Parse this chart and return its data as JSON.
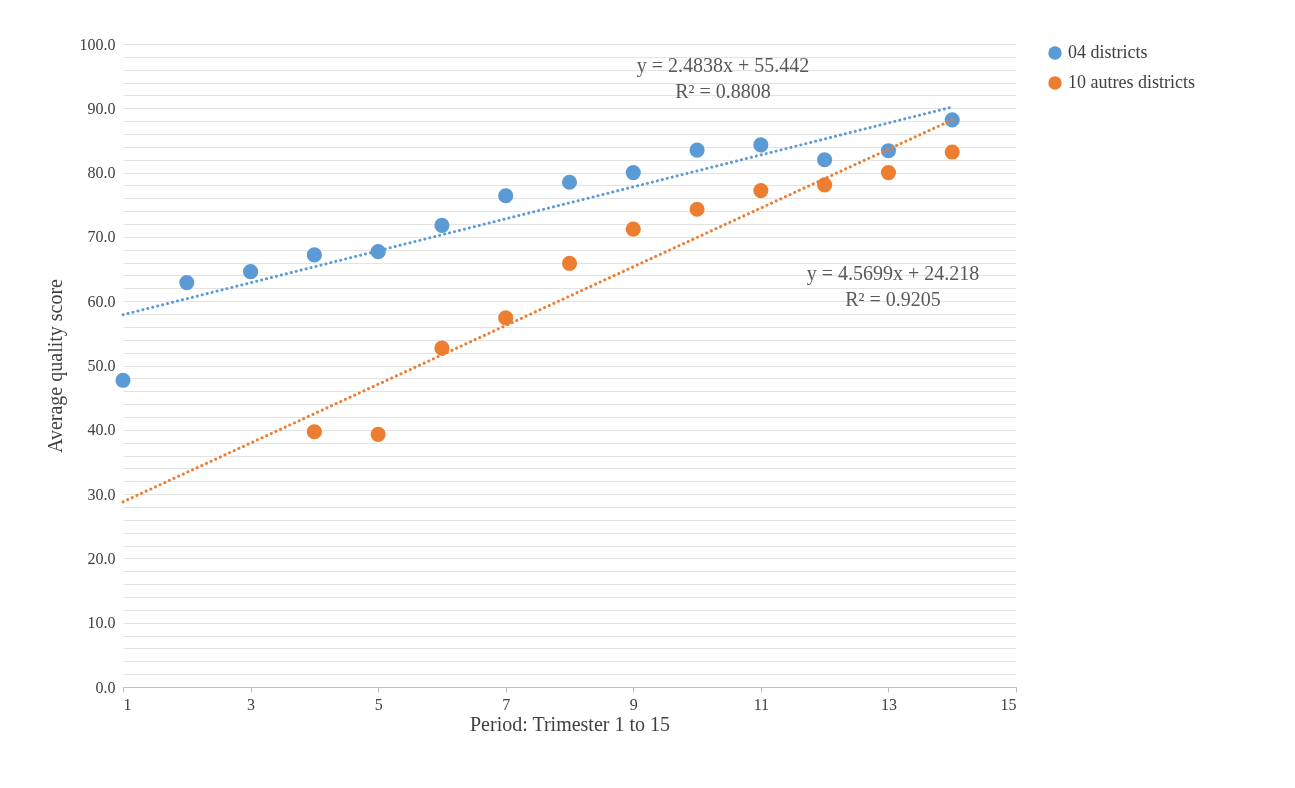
{
  "chart_data": {
    "type": "scatter",
    "xlabel": "Period: Trimester 1 to 15",
    "ylabel": "Average quality score",
    "xlim": [
      1,
      15
    ],
    "xticks": [
      1,
      3,
      5,
      7,
      9,
      11,
      13,
      15
    ],
    "ylim": [
      0,
      100
    ],
    "yticks": [
      {
        "value": 0,
        "label": "0.0"
      },
      {
        "value": 2,
        "label": null
      },
      {
        "value": 4,
        "label": null
      },
      {
        "value": 6,
        "label": null
      },
      {
        "value": 8,
        "label": null
      },
      {
        "value": 10,
        "label": "10.0"
      },
      {
        "value": 12,
        "label": null
      },
      {
        "value": 14,
        "label": null
      },
      {
        "value": 16,
        "label": null
      },
      {
        "value": 18,
        "label": null
      },
      {
        "value": 20,
        "label": "20.0"
      },
      {
        "value": 22,
        "label": null
      },
      {
        "value": 24,
        "label": null
      },
      {
        "value": 26,
        "label": null
      },
      {
        "value": 28,
        "label": null
      },
      {
        "value": 30,
        "label": "30.0"
      },
      {
        "value": 32,
        "label": null
      },
      {
        "value": 34,
        "label": null
      },
      {
        "value": 36,
        "label": null
      },
      {
        "value": 38,
        "label": null
      },
      {
        "value": 40,
        "label": "40.0"
      },
      {
        "value": 42,
        "label": null
      },
      {
        "value": 44,
        "label": null
      },
      {
        "value": 46,
        "label": null
      },
      {
        "value": 48,
        "label": null
      },
      {
        "value": 50,
        "label": "50.0"
      },
      {
        "value": 52,
        "label": null
      },
      {
        "value": 54,
        "label": null
      },
      {
        "value": 56,
        "label": null
      },
      {
        "value": 58,
        "label": null
      },
      {
        "value": 60,
        "label": "60.0"
      },
      {
        "value": 62,
        "label": null
      },
      {
        "value": 64,
        "label": null
      },
      {
        "value": 66,
        "label": null
      },
      {
        "value": 68,
        "label": null
      },
      {
        "value": 70,
        "label": "70.0"
      },
      {
        "value": 72,
        "label": null
      },
      {
        "value": 74,
        "label": null
      },
      {
        "value": 76,
        "label": null
      },
      {
        "value": 78,
        "label": null
      },
      {
        "value": 80,
        "label": "80.0"
      },
      {
        "value": 82,
        "label": null
      },
      {
        "value": 84,
        "label": null
      },
      {
        "value": 86,
        "label": null
      },
      {
        "value": 88,
        "label": null
      },
      {
        "value": 90,
        "label": "90.0"
      },
      {
        "value": 92,
        "label": null
      },
      {
        "value": 94,
        "label": null
      },
      {
        "value": 96,
        "label": null
      },
      {
        "value": 98,
        "label": null
      },
      {
        "value": 100,
        "label": "100.0"
      }
    ],
    "grid": "y",
    "legend": "right",
    "marker": "circle",
    "series": [
      {
        "name": "04 districts",
        "color": "#5b9bd5",
        "x": [
          1,
          2,
          3,
          4,
          5,
          6,
          7,
          8,
          9,
          10,
          11,
          12,
          13,
          14
        ],
        "values": [
          47.7,
          62.9,
          64.6,
          67.2,
          67.7,
          71.8,
          76.4,
          78.5,
          80.0,
          83.5,
          84.3,
          82.0,
          83.4,
          88.2
        ]
      },
      {
        "name": "10 autres districts",
        "color": "#ed7d31",
        "x": [
          4,
          5,
          6,
          7,
          8,
          9,
          10,
          11,
          12,
          13,
          14
        ],
        "values": [
          39.7,
          39.3,
          52.7,
          57.4,
          65.9,
          71.2,
          74.3,
          77.2,
          78.1,
          80.0,
          83.2
        ]
      },
      {
        "type": "line",
        "color": "#5b9bd5",
        "line_style": "dotted",
        "marker": "none",
        "x": [
          1,
          14
        ],
        "values": [
          57.9,
          90.2
        ]
      },
      {
        "type": "line",
        "color": "#ed7d31",
        "line_style": "dotted",
        "marker": "none",
        "x": [
          1,
          14
        ],
        "values": [
          28.8,
          88.2
        ]
      }
    ],
    "annotations": [
      "y = 2.4838x + 55.442\nR² = 0.8808",
      "y = 4.5699x + 24.218\nR² = 0.9205"
    ]
  }
}
